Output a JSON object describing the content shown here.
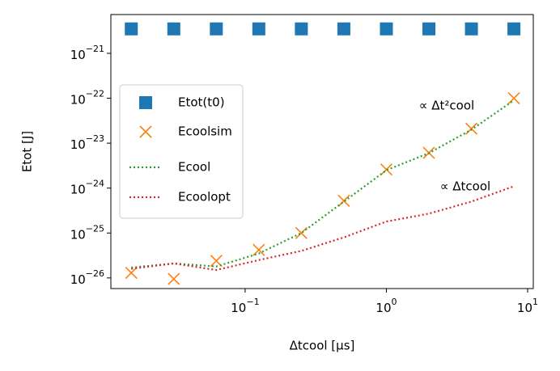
{
  "chart_data": {
    "type": "line",
    "xlabel": "Δtcool [μs]",
    "ylabel": "Etot [J]",
    "xscale": "log",
    "yscale": "log",
    "xlim": [
      0.0112,
      10.97
    ],
    "ylim": [
      5.8e-27,
      7.3e-21
    ],
    "xticks": [
      {
        "value": 0.1,
        "label": "10−1"
      },
      {
        "value": 1,
        "label": "100"
      },
      {
        "value": 10,
        "label": "101"
      }
    ],
    "yticks": [
      {
        "value": 1e-26,
        "label": "10−26"
      },
      {
        "value": 1e-25,
        "label": "10−25"
      },
      {
        "value": 1e-24,
        "label": "10−24"
      },
      {
        "value": 1e-23,
        "label": "10−23"
      },
      {
        "value": 1e-22,
        "label": "10−22"
      },
      {
        "value": 1e-21,
        "label": "10−21"
      }
    ],
    "legend": "center left",
    "x": [
      0.015625,
      0.03125,
      0.0625,
      0.125,
      0.25,
      0.5,
      1,
      2,
      4,
      8
    ],
    "series": [
      {
        "name": "Etot(t0)",
        "color": "#1f77b4",
        "marker": "square",
        "values": [
          3.5e-21,
          3.5e-21,
          3.5e-21,
          3.5e-21,
          3.5e-21,
          3.5e-21,
          3.5e-21,
          3.5e-21,
          3.5e-21,
          3.5e-21
        ]
      },
      {
        "name": "Ecoolsim",
        "color": "#ff7f0e",
        "marker": "x",
        "values": [
          1.3e-26,
          9.5e-27,
          2.4e-26,
          4.2e-26,
          1e-25,
          5.2e-25,
          2.6e-24,
          6.1e-24,
          2.1e-23,
          1e-22
        ]
      },
      {
        "name": "Ecool",
        "color": "#2ca02c",
        "linestyle": "dotted",
        "values": [
          1.7e-26,
          2.1e-26,
          1.8e-26,
          3.5e-26,
          1e-25,
          5e-25,
          2.5e-24,
          6e-24,
          2e-23,
          9e-23
        ]
      },
      {
        "name": "Ecoolopt",
        "color": "#d62728",
        "linestyle": "dotted",
        "values": [
          1.6e-26,
          2.1e-26,
          1.5e-26,
          2.5e-26,
          4e-26,
          8e-26,
          1.8e-25,
          2.7e-25,
          5e-25,
          1.1e-24
        ]
      }
    ],
    "annotations": [
      "∝ Δt²cool",
      "∝ Δtcool"
    ]
  }
}
